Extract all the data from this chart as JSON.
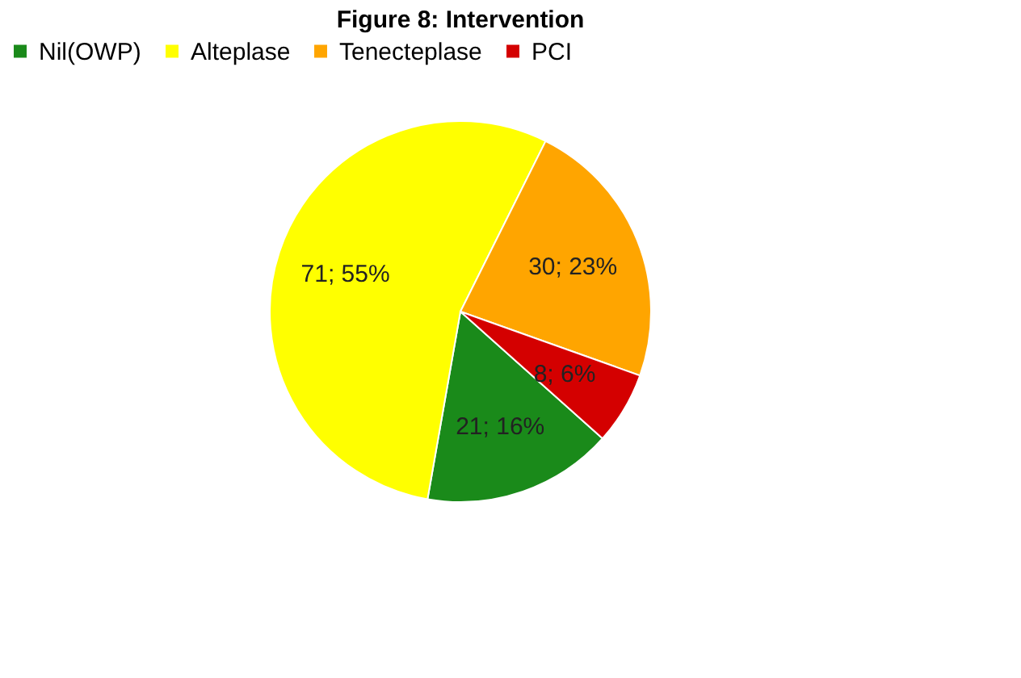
{
  "chart_data": {
    "type": "pie",
    "title": "Figure 8: Intervention",
    "categories": [
      "Nil(OWP)",
      "Alteplase",
      "Tenecteplase",
      "PCI"
    ],
    "values": [
      21,
      71,
      30,
      8
    ],
    "colors": [
      "#1a8a1a",
      "#ffff00",
      "#ffa500",
      "#d40000"
    ],
    "value_labels": [
      "21; 16%",
      "71; 55%",
      "30; 23%",
      "8; 6%"
    ],
    "legend": "top"
  }
}
